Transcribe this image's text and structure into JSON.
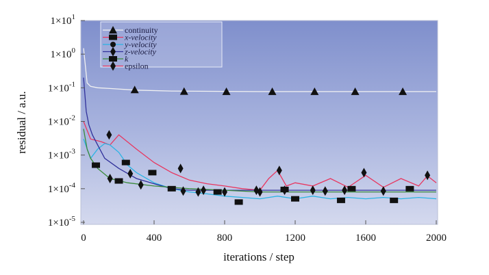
{
  "chart_data": {
    "type": "line",
    "xlabel": "iterations / step",
    "ylabel": "residual / a.u.",
    "xlim": [
      0,
      2000
    ],
    "ylim": [
      1e-05,
      10
    ],
    "yscale": "log",
    "x_ticks": [
      0,
      400,
      800,
      1200,
      1600,
      2000
    ],
    "x_tick_labels": [
      "0",
      "400",
      "800",
      "1200",
      "1600",
      "2000"
    ],
    "y_ticks": [
      1e-05,
      0.0001,
      0.001,
      0.01,
      0.1,
      1,
      10
    ],
    "y_tick_labels": [
      {
        "base": "1×10",
        "exp": "-5"
      },
      {
        "base": "1×10",
        "exp": "-4"
      },
      {
        "base": "1×10",
        "exp": "-3"
      },
      {
        "base": "1×10",
        "exp": "-2"
      },
      {
        "base": "1×10",
        "exp": "-1"
      },
      {
        "base": "1×10",
        "exp": "0"
      },
      {
        "base": "1×10",
        "exp": "1"
      }
    ],
    "grid": false,
    "legend_position": "top-left",
    "series": [
      {
        "name": "continuity",
        "color": "#f2f2f2",
        "marker": "triangle",
        "x": [
          0,
          20,
          40,
          80,
          150,
          300,
          500,
          800,
          1000,
          1200,
          1400,
          1600,
          1800,
          2000
        ],
        "y": [
          1.5,
          0.14,
          0.11,
          0.1,
          0.095,
          0.085,
          0.08,
          0.078,
          0.077,
          0.077,
          0.077,
          0.077,
          0.077,
          0.077
        ],
        "marker_x": [
          290,
          570,
          810,
          1070,
          1310,
          1540,
          1810
        ],
        "marker_y": [
          0.087,
          0.078,
          0.077,
          0.077,
          0.077,
          0.077,
          0.077
        ]
      },
      {
        "name": "x-velocity",
        "color": "#e8365f",
        "marker": "square",
        "x": [
          0,
          40,
          100,
          150,
          200,
          300,
          400,
          500,
          600,
          700,
          800,
          900,
          1000,
          1050,
          1100,
          1150,
          1200,
          1300,
          1400,
          1500,
          1600,
          1700,
          1800,
          1900,
          1950,
          2000
        ],
        "y": [
          0.01,
          0.003,
          0.0025,
          0.002,
          0.004,
          0.0015,
          0.0006,
          0.0003,
          0.00018,
          0.00014,
          0.00012,
          0.0001,
          9e-05,
          0.0002,
          0.00035,
          0.00012,
          0.00015,
          0.00012,
          0.0002,
          0.00011,
          0.00025,
          0.00011,
          0.0002,
          0.00012,
          0.00024,
          0.00015
        ],
        "marker_x": [],
        "marker_y": []
      },
      {
        "name": "y-velocity",
        "color": "#2ab4e4",
        "marker": "circle",
        "x": [
          0,
          40,
          80,
          120,
          150,
          200,
          250,
          300,
          400,
          500,
          600,
          700,
          800,
          900,
          1000,
          1100,
          1200,
          1300,
          1400,
          1500,
          1600,
          1700,
          1800,
          1900,
          2000
        ],
        "y": [
          0.003,
          0.0008,
          0.0015,
          0.0022,
          0.002,
          0.0012,
          0.0005,
          0.0003,
          0.00015,
          0.0001,
          8e-05,
          7e-05,
          6e-05,
          5.5e-05,
          5e-05,
          6e-05,
          5e-05,
          6e-05,
          5e-05,
          5.5e-05,
          5e-05,
          5.5e-05,
          5e-05,
          5.5e-05,
          5e-05
        ],
        "marker_x": [],
        "marker_y": []
      },
      {
        "name": "z-velocity",
        "color": "#30309a",
        "marker": "diamond",
        "x": [
          0,
          15,
          30,
          50,
          80,
          120,
          200,
          300,
          400,
          500,
          600,
          700,
          800,
          900,
          1000,
          1100,
          1200,
          1300,
          1400,
          1500,
          1600,
          1700,
          1800,
          1900,
          2000
        ],
        "y": [
          0.2,
          0.02,
          0.008,
          0.004,
          0.002,
          0.0008,
          0.0004,
          0.0002,
          0.00014,
          0.0001,
          9e-05,
          9e-05,
          9e-05,
          9e-05,
          9e-05,
          9e-05,
          9e-05,
          9e-05,
          9e-05,
          9e-05,
          9e-05,
          9e-05,
          9e-05,
          9e-05,
          9e-05
        ],
        "marker_x": [
          150,
          265,
          565,
          650,
          800,
          1000,
          1140,
          1370,
          1480,
          1700
        ],
        "marker_y": [
          0.0002,
          0.00028,
          8.5e-05,
          8e-05,
          8e-05,
          8e-05,
          9e-05,
          8.5e-05,
          9e-05,
          8.5e-05
        ]
      },
      {
        "name": "k",
        "color": "#3a8a3a",
        "marker": "square",
        "x": [
          0,
          20,
          40,
          80,
          150,
          250,
          400,
          600,
          800,
          1000,
          1200,
          1400,
          1600,
          1800,
          2000
        ],
        "y": [
          0.006,
          0.0015,
          0.0008,
          0.0004,
          0.0002,
          0.00015,
          0.00012,
          0.0001,
          9e-05,
          8e-05,
          8e-05,
          8e-05,
          8e-05,
          8e-05,
          8e-05
        ],
        "marker_x": [
          70,
          200,
          240,
          390,
          500,
          760,
          880,
          1140,
          1200,
          1460,
          1520,
          1760,
          1850
        ],
        "marker_y": [
          0.0005,
          0.00017,
          0.0006,
          0.0003,
          0.0001,
          8e-05,
          4e-05,
          9.5e-05,
          5e-05,
          4.5e-05,
          0.0001,
          4.5e-05,
          0.0001
        ]
      },
      {
        "name": "epsilon",
        "color": "#e8365f",
        "marker": "diamond",
        "x": [],
        "y": [],
        "marker_x": [
          145,
          325,
          550,
          680,
          980,
          1110,
          1300,
          1590,
          1950
        ],
        "marker_y": [
          0.004,
          0.00013,
          0.0004,
          9e-05,
          9e-05,
          0.00035,
          9e-05,
          0.0003,
          0.00025
        ]
      }
    ]
  }
}
